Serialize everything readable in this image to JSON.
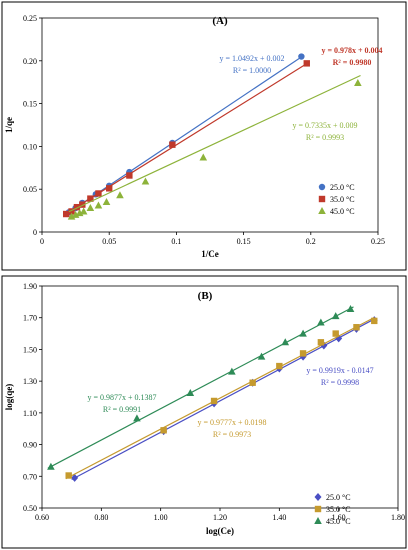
{
  "chart_data": [
    {
      "type": "scatter",
      "title": "(A)",
      "xlabel": "1/Ce",
      "ylabel": "1/qe",
      "xlim": [
        0,
        0.25
      ],
      "ylim": [
        0,
        0.25
      ],
      "xticks": [
        "0",
        "0.05",
        "0.1",
        "0.15",
        "0.2",
        "0.25"
      ],
      "yticks": [
        "0",
        "0.05",
        "0.10",
        "0.15",
        "0.20",
        "0.25"
      ],
      "legend_position": "bottom-right",
      "grid": false,
      "series": [
        {
          "name": "25.0 °C",
          "color": "#4472C4",
          "marker": "circle",
          "points": [
            [
              0.02,
              0.023
            ],
            [
              0.025,
              0.028
            ],
            [
              0.03,
              0.034
            ],
            [
              0.04,
              0.044
            ],
            [
              0.05,
              0.054
            ],
            [
              0.065,
              0.07
            ],
            [
              0.097,
              0.104
            ],
            [
              0.193,
              0.205
            ]
          ],
          "fit": {
            "slope": 1.0492,
            "intercept": 0.002,
            "x_range": [
              0.018,
              0.193
            ]
          },
          "equation": "y = 1.0492x + 0.002",
          "r2": "R² = 1.0000"
        },
        {
          "name": "35.0 °C",
          "color": "#C0392B",
          "marker": "square",
          "points": [
            [
              0.018,
              0.021
            ],
            [
              0.022,
              0.024
            ],
            [
              0.026,
              0.029
            ],
            [
              0.03,
              0.032
            ],
            [
              0.036,
              0.039
            ],
            [
              0.042,
              0.045
            ],
            [
              0.05,
              0.051
            ],
            [
              0.065,
              0.066
            ],
            [
              0.097,
              0.102
            ],
            [
              0.197,
              0.197
            ]
          ],
          "fit": {
            "slope": 0.978,
            "intercept": 0.004,
            "x_range": [
              0.018,
              0.197
            ]
          },
          "equation": "y = 0.978x + 0.004",
          "r2": "R² = 0.9980"
        },
        {
          "name": "45.0 °C",
          "color": "#8DB33A",
          "marker": "triangle",
          "points": [
            [
              0.022,
              0.018
            ],
            [
              0.025,
              0.02
            ],
            [
              0.028,
              0.022
            ],
            [
              0.031,
              0.024
            ],
            [
              0.036,
              0.028
            ],
            [
              0.042,
              0.031
            ],
            [
              0.048,
              0.035
            ],
            [
              0.058,
              0.043
            ],
            [
              0.077,
              0.059
            ],
            [
              0.12,
              0.087
            ],
            [
              0.235,
              0.174
            ]
          ],
          "fit": {
            "slope": 0.7335,
            "intercept": 0.009,
            "x_range": [
              0.02,
              0.237
            ]
          },
          "equation": "y = 0.7335x + 0.009",
          "r2": "R² = 0.9993"
        }
      ]
    },
    {
      "type": "scatter",
      "title": "(B)",
      "xlabel": "log(Ce)",
      "ylabel": "log(qe)",
      "xlim": [
        0.6,
        1.8
      ],
      "ylim": [
        0.5,
        1.9
      ],
      "xticks": [
        "0.60",
        "0.80",
        "1.00",
        "1.20",
        "1.40",
        "1.60",
        "1.80"
      ],
      "yticks": [
        "0.50",
        "0.70",
        "0.90",
        "1.10",
        "1.30",
        "1.50",
        "1.70",
        "1.90"
      ],
      "legend_position": "bottom-right",
      "grid": false,
      "series": [
        {
          "name": "25.0 °C",
          "color": "#4A4FC4",
          "marker": "diamond",
          "points": [
            [
              0.71,
              0.69
            ],
            [
              1.01,
              0.985
            ],
            [
              1.18,
              1.16
            ],
            [
              1.31,
              1.29
            ],
            [
              1.4,
              1.38
            ],
            [
              1.48,
              1.455
            ],
            [
              1.55,
              1.525
            ],
            [
              1.6,
              1.57
            ],
            [
              1.66,
              1.63
            ],
            [
              1.72,
              1.685
            ]
          ],
          "fit": {
            "slope": 0.9919,
            "intercept": -0.0147,
            "x_range": [
              0.7,
              1.72
            ]
          },
          "equation": "y = 0.9919x - 0.0147",
          "r2": "R² = 0.9998"
        },
        {
          "name": "35.0 °C",
          "color": "#C59A2E",
          "marker": "square",
          "points": [
            [
              0.69,
              0.705
            ],
            [
              1.01,
              0.99
            ],
            [
              1.18,
              1.175
            ],
            [
              1.31,
              1.29
            ],
            [
              1.4,
              1.395
            ],
            [
              1.48,
              1.475
            ],
            [
              1.54,
              1.545
            ],
            [
              1.59,
              1.6
            ],
            [
              1.66,
              1.64
            ],
            [
              1.72,
              1.68
            ]
          ],
          "fit": {
            "slope": 0.9777,
            "intercept": 0.0198,
            "x_range": [
              0.68,
              1.72
            ]
          },
          "equation": "y = 0.9777x + 0.0198",
          "r2": "R² = 0.9973"
        },
        {
          "name": "45.0 °C",
          "color": "#2E8B57",
          "marker": "triangle",
          "points": [
            [
              0.63,
              0.76
            ],
            [
              0.92,
              1.065
            ],
            [
              1.1,
              1.225
            ],
            [
              1.24,
              1.36
            ],
            [
              1.34,
              1.455
            ],
            [
              1.42,
              1.545
            ],
            [
              1.48,
              1.6
            ],
            [
              1.54,
              1.67
            ],
            [
              1.59,
              1.71
            ],
            [
              1.64,
              1.755
            ]
          ],
          "fit": {
            "slope": 0.9877,
            "intercept": 0.1387,
            "x_range": [
              0.62,
              1.65
            ]
          },
          "equation": "y = 0.9877x + 0.1387",
          "r2": "R² = 0.9991"
        }
      ]
    }
  ]
}
